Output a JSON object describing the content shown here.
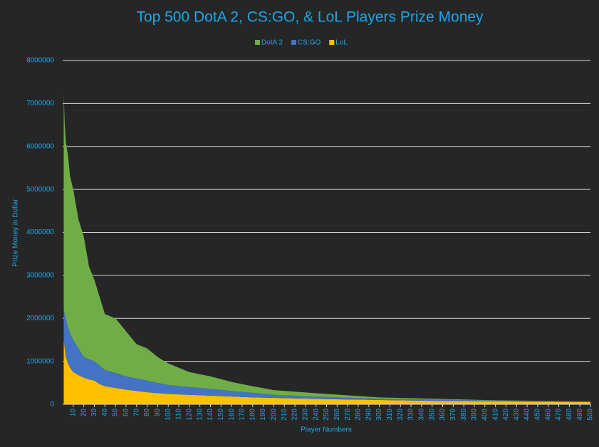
{
  "chart_data": {
    "type": "stacked_area",
    "title": "Top 500 DotA 2, CS:GO, & LoL Players Prize Money",
    "x_label": "Player Numbers",
    "y_label": "Prize Money in Dollar",
    "x": [
      1,
      2,
      3,
      5,
      7,
      10,
      15,
      20,
      25,
      30,
      35,
      40,
      50,
      60,
      70,
      80,
      90,
      100,
      120,
      140,
      160,
      180,
      200,
      250,
      300,
      350,
      400,
      450,
      500
    ],
    "series": [
      {
        "name": "DotA 2",
        "color": "#70ad47",
        "values": [
          5000000,
          4400000,
          4100000,
          4000000,
          3650000,
          3500000,
          3000000,
          2800000,
          2150000,
          1900000,
          1600000,
          1300000,
          1270000,
          1050000,
          800000,
          750000,
          600000,
          500000,
          350000,
          290000,
          210000,
          150000,
          110000,
          70000,
          30000,
          20000,
          10000,
          0,
          0
        ]
      },
      {
        "name": "CS:GO",
        "color": "#4472c4",
        "values": [
          700000,
          800000,
          900000,
          850000,
          800000,
          750000,
          620000,
          480000,
          470000,
          450000,
          430000,
          380000,
          350000,
          310000,
          290000,
          270000,
          240000,
          210000,
          180000,
          160000,
          130000,
          110000,
          70000,
          50000,
          30000,
          30000,
          20000,
          20000,
          20000
        ]
      },
      {
        "name": "LoL",
        "color": "#ffc000",
        "values": [
          1500000,
          1300000,
          1100000,
          950000,
          850000,
          750000,
          680000,
          620000,
          580000,
          550000,
          470000,
          420000,
          380000,
          340000,
          310000,
          280000,
          260000,
          240000,
          220000,
          200000,
          180000,
          160000,
          150000,
          120000,
          100000,
          80000,
          70000,
          60000,
          50000
        ]
      }
    ],
    "xlim": [
      0,
      500
    ],
    "xticks": [
      10,
      20,
      30,
      40,
      50,
      60,
      70,
      80,
      90,
      100,
      110,
      120,
      130,
      140,
      150,
      160,
      170,
      180,
      190,
      200,
      210,
      220,
      230,
      240,
      250,
      260,
      270,
      280,
      290,
      300,
      310,
      320,
      330,
      340,
      350,
      360,
      370,
      380,
      390,
      400,
      410,
      420,
      430,
      440,
      450,
      460,
      470,
      480,
      490,
      500
    ],
    "ylim": [
      0,
      8000000
    ],
    "yticks": [
      0,
      1000000,
      2000000,
      3000000,
      4000000,
      5000000,
      6000000,
      7000000,
      8000000
    ],
    "grid": true,
    "legend": "top"
  }
}
